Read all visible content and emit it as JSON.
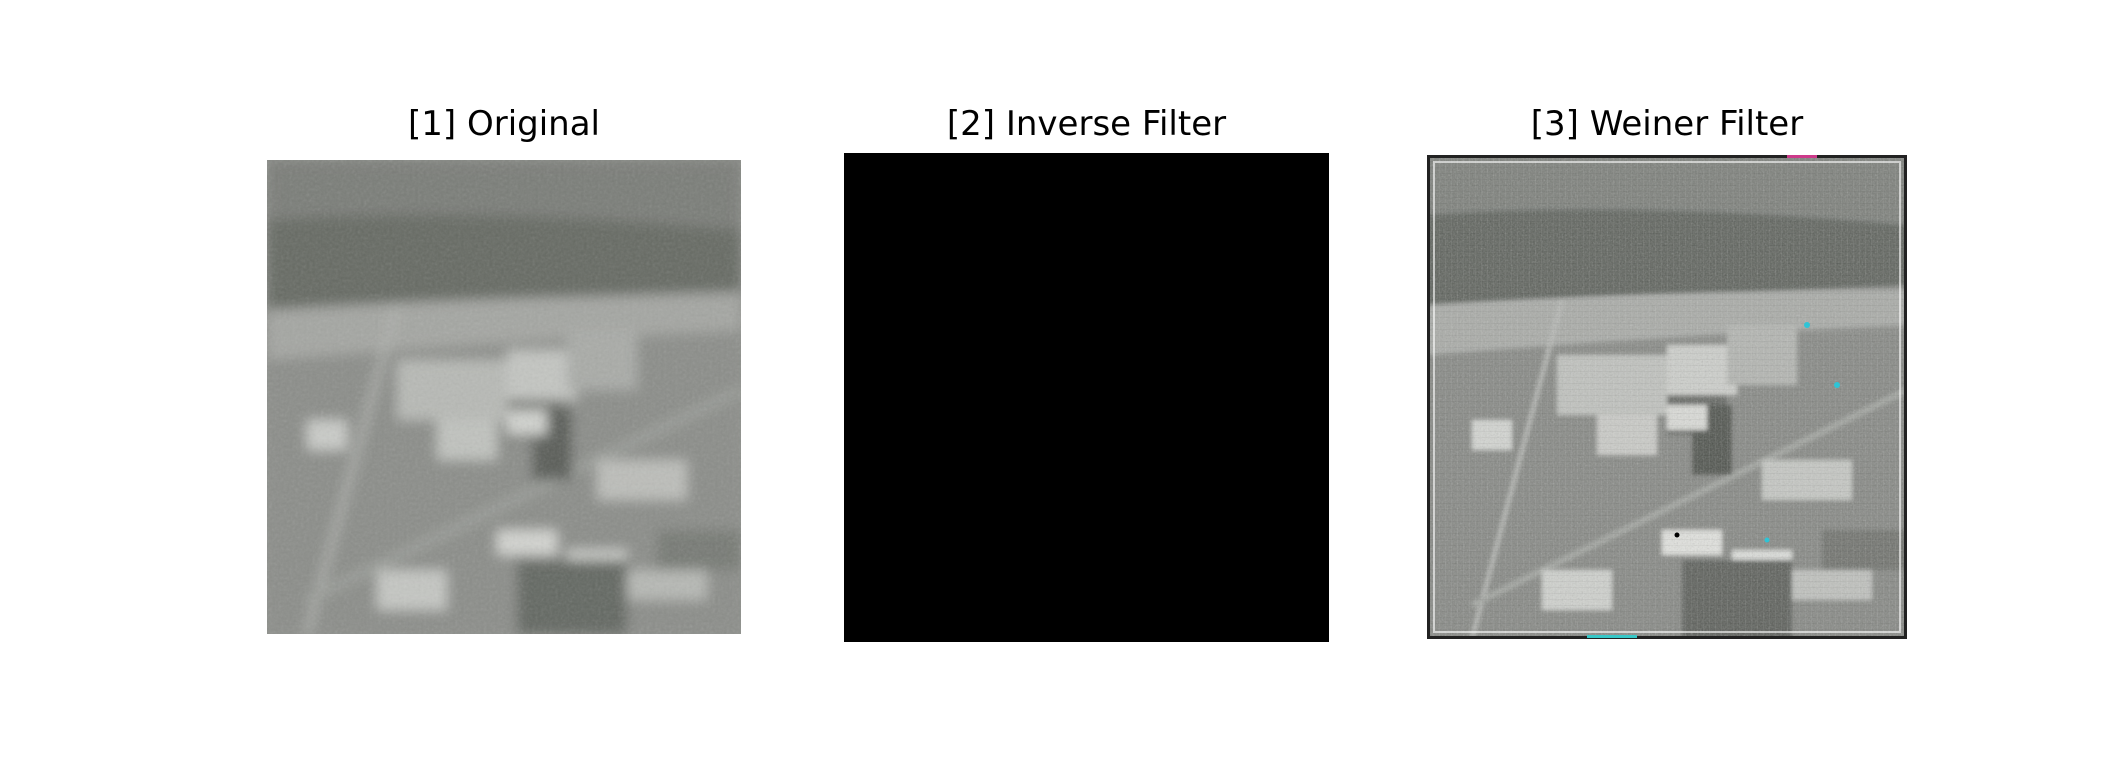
{
  "figure": {
    "panels": [
      {
        "title": "[1] Original",
        "content": "blurred aerial grayscale photograph"
      },
      {
        "title": "[2] Inverse Filter",
        "content": "solid black output"
      },
      {
        "title": "[3] Weiner Filter",
        "content": "restored aerial grayscale photograph with ringing artifacts"
      }
    ]
  },
  "colors": {
    "background": "#ffffff",
    "text": "#000000",
    "inverse_output": "#000000",
    "photo_mid_gray": "#8a8c88",
    "photo_dark": "#5b5e59",
    "photo_light": "#c9cac6"
  }
}
